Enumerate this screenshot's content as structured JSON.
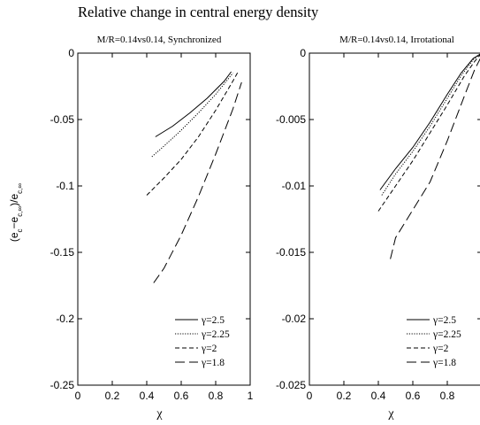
{
  "title": "Relative change in central energy density",
  "ylabel": "(e_c−e_c,∞)/e_c,∞",
  "chart_data": [
    {
      "type": "line",
      "title": "M/R=0.14vs0.14, Synchronized",
      "xlabel": "χ",
      "xlim": [
        0,
        1
      ],
      "ylim": [
        -0.25,
        0
      ],
      "x_ticks": [
        0,
        0.2,
        0.4,
        0.6,
        0.8,
        1
      ],
      "x_tick_labels": [
        "0",
        "0.2",
        "0.4",
        "0.6",
        "0.8",
        "1"
      ],
      "y_ticks": [
        0,
        -0.05,
        -0.1,
        -0.15,
        -0.2,
        -0.25
      ],
      "y_tick_labels": [
        "0",
        "-0.05",
        "-0.1",
        "-0.15",
        "-0.2",
        "-0.25"
      ],
      "grid": false,
      "legend_position": "bottom-right",
      "series": [
        {
          "name": "γ=2.5",
          "dash": "solid",
          "x": [
            0.45,
            0.55,
            0.65,
            0.75,
            0.85,
            0.89
          ],
          "y": [
            -0.063,
            -0.055,
            -0.045,
            -0.034,
            -0.021,
            -0.014
          ]
        },
        {
          "name": "γ=2.25",
          "dash": "dotted",
          "x": [
            0.43,
            0.5,
            0.6,
            0.7,
            0.8,
            0.9
          ],
          "y": [
            -0.078,
            -0.07,
            -0.058,
            -0.045,
            -0.031,
            -0.015
          ]
        },
        {
          "name": "γ=2",
          "dash": "dashed",
          "x": [
            0.4,
            0.5,
            0.6,
            0.7,
            0.8,
            0.9,
            0.93
          ],
          "y": [
            -0.107,
            -0.094,
            -0.08,
            -0.063,
            -0.043,
            -0.021,
            -0.014
          ]
        },
        {
          "name": "γ=1.8",
          "dash": "longdash",
          "x": [
            0.44,
            0.5,
            0.6,
            0.7,
            0.8,
            0.9,
            0.95
          ],
          "y": [
            -0.173,
            -0.162,
            -0.137,
            -0.108,
            -0.076,
            -0.042,
            -0.022
          ]
        }
      ]
    },
    {
      "type": "line",
      "title": "M/R=0.14vs0.14, Irrotational",
      "xlabel": "χ",
      "xlim": [
        0,
        1
      ],
      "ylim": [
        -0.025,
        0
      ],
      "x_ticks": [
        0,
        0.2,
        0.4,
        0.6,
        0.8
      ],
      "x_tick_labels": [
        "0",
        "0.2",
        "0.4",
        "0.6",
        "0.8"
      ],
      "y_ticks": [
        0,
        -0.005,
        -0.01,
        -0.015,
        -0.02,
        -0.025
      ],
      "y_tick_labels": [
        "0",
        "-0.005",
        "-0.01",
        "-0.015",
        "-0.02",
        "-0.025"
      ],
      "grid": false,
      "legend_position": "bottom-right",
      "series": [
        {
          "name": "γ=2.5",
          "dash": "solid",
          "x": [
            0.41,
            0.5,
            0.6,
            0.7,
            0.8,
            0.88,
            0.95,
            1.0
          ],
          "y": [
            -0.0103,
            -0.0087,
            -0.0071,
            -0.0052,
            -0.0031,
            -0.0015,
            -0.0004,
            0.0
          ]
        },
        {
          "name": "γ=2.25",
          "dash": "dotted",
          "x": [
            0.42,
            0.5,
            0.6,
            0.7,
            0.8,
            0.88,
            0.95,
            1.0
          ],
          "y": [
            -0.0107,
            -0.0091,
            -0.0074,
            -0.0055,
            -0.0034,
            -0.0017,
            -0.0005,
            0.0
          ]
        },
        {
          "name": "γ=2",
          "dash": "dashed",
          "x": [
            0.4,
            0.5,
            0.6,
            0.7,
            0.8,
            0.9,
            0.96,
            1.0
          ],
          "y": [
            -0.0119,
            -0.01,
            -0.0081,
            -0.006,
            -0.0039,
            -0.0017,
            -0.0006,
            0.0
          ]
        },
        {
          "name": "γ=1.8",
          "dash": "longdash",
          "x": [
            0.47,
            0.5,
            0.6,
            0.7,
            0.8,
            0.9,
            0.96,
            1.0
          ],
          "y": [
            -0.0155,
            -0.0139,
            -0.0118,
            -0.0097,
            -0.0066,
            -0.0032,
            -0.0012,
            -0.0002
          ]
        }
      ]
    }
  ]
}
